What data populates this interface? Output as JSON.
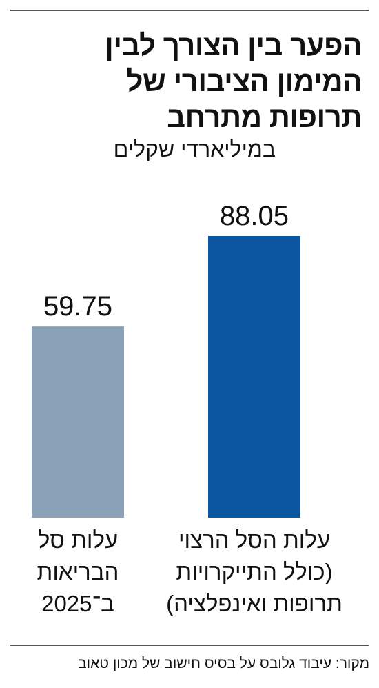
{
  "chart_data": {
    "type": "bar",
    "title": "הפער בין הצורך לבין\nהמימון הציבורי של\nתרופות מתרחב",
    "subtitle": "במיליארדי שקלים",
    "categories": [
      "עלות סל\nהבריאות\nב־2025",
      "עלות הסל הרצוי\n(כולל התייקרויות\nתרופות ואינפלציה)"
    ],
    "values": [
      59.75,
      88.05
    ],
    "colors": [
      "#8aa1b8",
      "#0b56a1"
    ],
    "source": "מקור: עיבוד גלובס על בסיס חישוב של מכון טאוב"
  }
}
